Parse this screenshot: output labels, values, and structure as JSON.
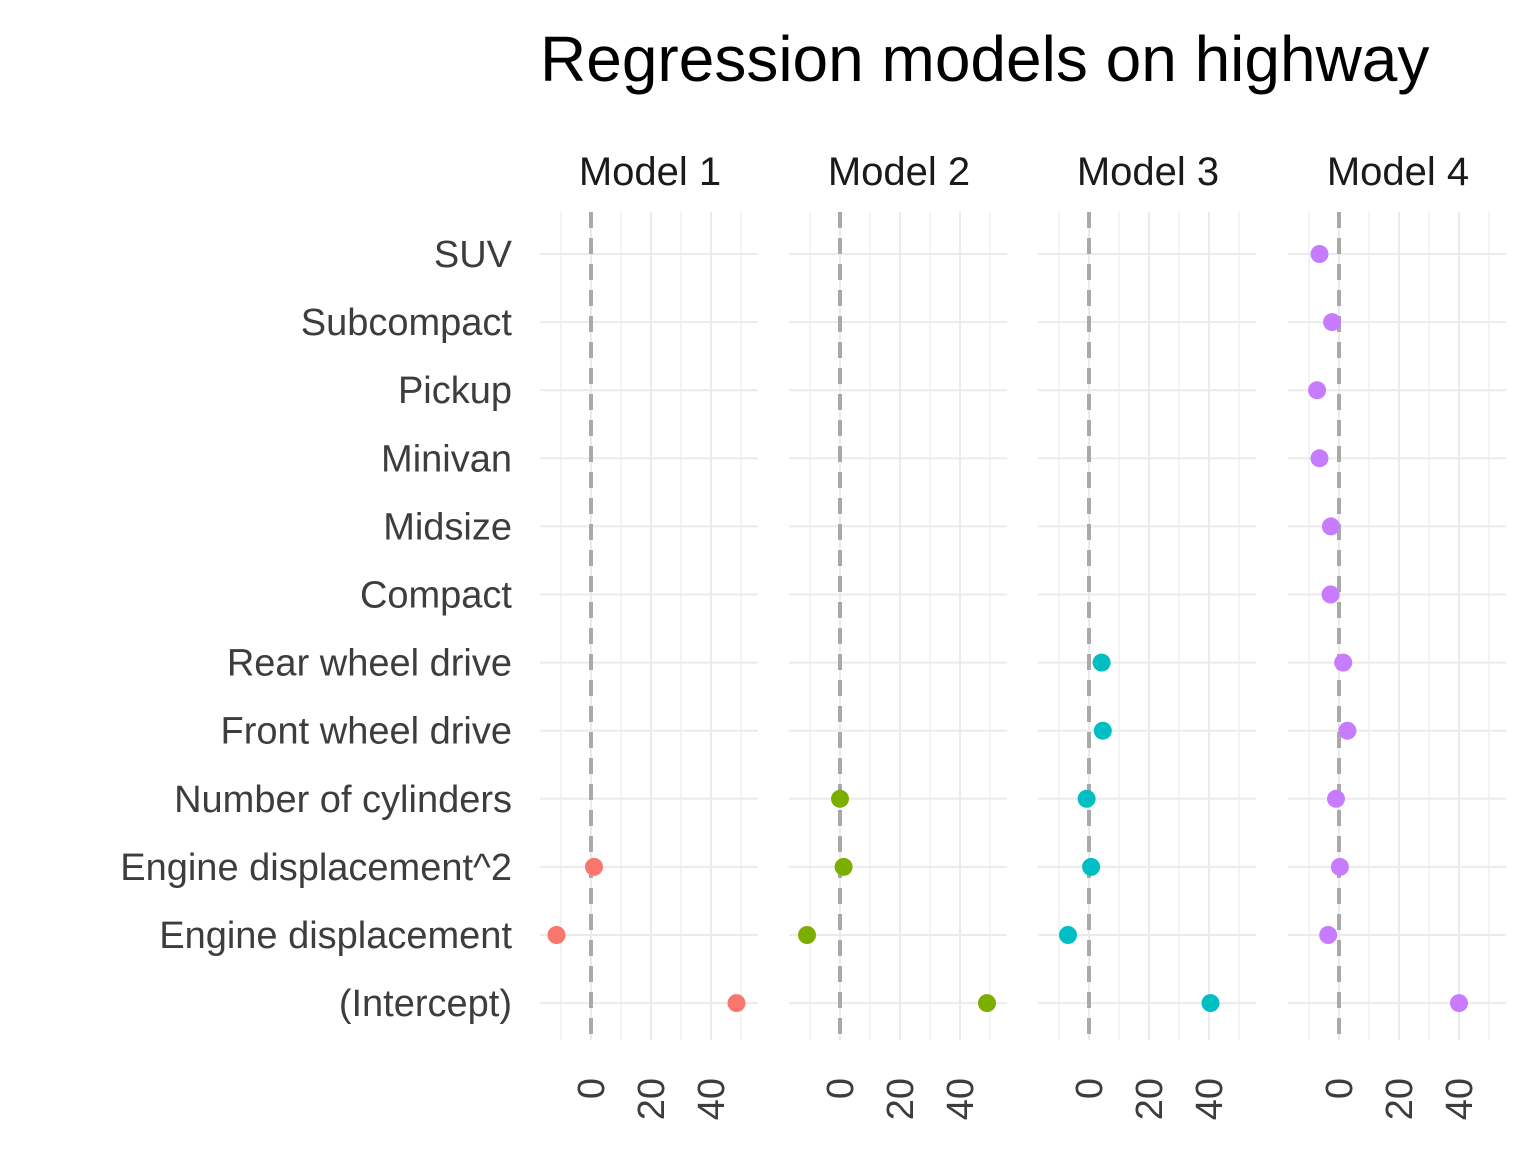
{
  "chart_data": {
    "type": "scatter",
    "title": "Regression models on highway",
    "xlabel": "",
    "ylabel": "",
    "panels": [
      "Model 1",
      "Model 2",
      "Model 3",
      "Model 4"
    ],
    "terms": [
      "SUV",
      "Subcompact",
      "Pickup",
      "Minivan",
      "Midsize",
      "Compact",
      "Rear wheel drive",
      "Front wheel drive",
      "Number of cylinders",
      "Engine displacement^2",
      "Engine displacement",
      "(Intercept)"
    ],
    "x_ticks": [
      0,
      20,
      40
    ],
    "xlim": [
      -18,
      55
    ],
    "reference_line": 0,
    "grid": true,
    "series": [
      {
        "name": "Model 1",
        "color": "#F8766D",
        "points": [
          {
            "term": "Engine displacement^2",
            "value": 1
          },
          {
            "term": "Engine displacement",
            "value": -11.5
          },
          {
            "term": "(Intercept)",
            "value": 48.5
          }
        ]
      },
      {
        "name": "Model 2",
        "color": "#7CAE00",
        "points": [
          {
            "term": "Number of cylinders",
            "value": 0
          },
          {
            "term": "Engine displacement^2",
            "value": 1.2
          },
          {
            "term": "Engine displacement",
            "value": -11
          },
          {
            "term": "(Intercept)",
            "value": 49
          }
        ]
      },
      {
        "name": "Model 3",
        "color": "#00BFC4",
        "points": [
          {
            "term": "Rear wheel drive",
            "value": 4.2
          },
          {
            "term": "Front wheel drive",
            "value": 4.6
          },
          {
            "term": "Number of cylinders",
            "value": -0.8
          },
          {
            "term": "Engine displacement^2",
            "value": 0.7
          },
          {
            "term": "Engine displacement",
            "value": -7
          },
          {
            "term": "(Intercept)",
            "value": 40.5
          }
        ]
      },
      {
        "name": "Model 4",
        "color": "#C77CFF",
        "points": [
          {
            "term": "SUV",
            "value": -6.5
          },
          {
            "term": "Subcompact",
            "value": -2.3
          },
          {
            "term": "Pickup",
            "value": -7.3
          },
          {
            "term": "Minivan",
            "value": -6.5
          },
          {
            "term": "Midsize",
            "value": -2.7
          },
          {
            "term": "Compact",
            "value": -2.8
          },
          {
            "term": "Rear wheel drive",
            "value": 1.4
          },
          {
            "term": "Front wheel drive",
            "value": 2.8
          },
          {
            "term": "Number of cylinders",
            "value": -1
          },
          {
            "term": "Engine displacement^2",
            "value": 0.3
          },
          {
            "term": "Engine displacement",
            "value": -3.6
          },
          {
            "term": "(Intercept)",
            "value": 40
          }
        ]
      }
    ]
  }
}
